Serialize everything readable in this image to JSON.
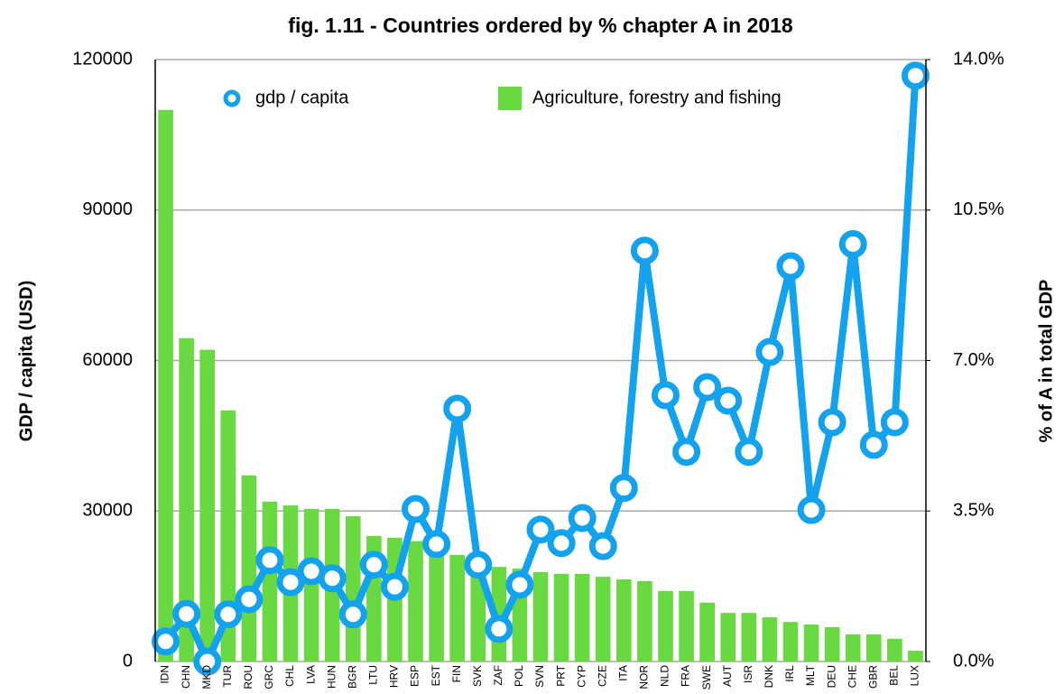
{
  "chart_data": {
    "type": "bar_line",
    "title": "fig. 1.11 - Countries ordered by % chapter A in 2018",
    "ylabel": "GDP / capita (USD)",
    "y2label": "% of A in total GDP",
    "categories": [
      "IDN",
      "CHN",
      "MKD",
      "TUR",
      "ROU",
      "GRC",
      "CHL",
      "LVA",
      "HUN",
      "BGR",
      "LTU",
      "HRV",
      "ESP",
      "EST",
      "FIN",
      "SVK",
      "ZAF",
      "POL",
      "SVN",
      "PRT",
      "CYP",
      "CZE",
      "ITA",
      "NOR",
      "NLD",
      "FRA",
      "SWE",
      "AUT",
      "ISR",
      "DNK",
      "IRL",
      "MLT",
      "DEU",
      "CHE",
      "GBR",
      "BEL",
      "LUX"
    ],
    "series": [
      {
        "name": "gdp / capita",
        "type": "line",
        "color": "#12a2ee",
        "values": [
          4000,
          9500,
          0,
          9400,
          12400,
          20200,
          15800,
          18000,
          16600,
          9400,
          19300,
          14900,
          30400,
          23400,
          50400,
          19300,
          6500,
          15300,
          26300,
          23600,
          28600,
          23000,
          34600,
          81900,
          53100,
          41800,
          54700,
          52000,
          41800,
          61700,
          78800,
          30200,
          47700,
          83200,
          43200,
          47700,
          116800
        ]
      },
      {
        "name": "Agriculture, forestry and fishing",
        "type": "bar",
        "axis": "y2",
        "color": "#68d940",
        "values": [
          12.83,
          7.52,
          7.25,
          5.84,
          4.33,
          3.72,
          3.63,
          3.55,
          3.55,
          3.38,
          2.92,
          2.88,
          2.8,
          2.7,
          2.48,
          2.46,
          2.2,
          2.16,
          2.08,
          2.04,
          2.04,
          1.97,
          1.91,
          1.87,
          1.64,
          1.64,
          1.37,
          1.13,
          1.13,
          1.03,
          0.92,
          0.86,
          0.8,
          0.63,
          0.63,
          0.53,
          0.25
        ]
      }
    ],
    "ylim": [
      0,
      120000
    ],
    "yticks": [
      0,
      30000,
      60000,
      90000,
      120000
    ],
    "y2lim": [
      0,
      14
    ],
    "y2ticks": [
      {
        "value": 0,
        "label": "0.0%"
      },
      {
        "value": 3.5,
        "label": "3.5%"
      },
      {
        "value": 7,
        "label": "7.0%"
      },
      {
        "value": 10.5,
        "label": "10.5%"
      },
      {
        "value": 14,
        "label": "14.0%"
      }
    ],
    "grid": true,
    "legend": "top"
  }
}
